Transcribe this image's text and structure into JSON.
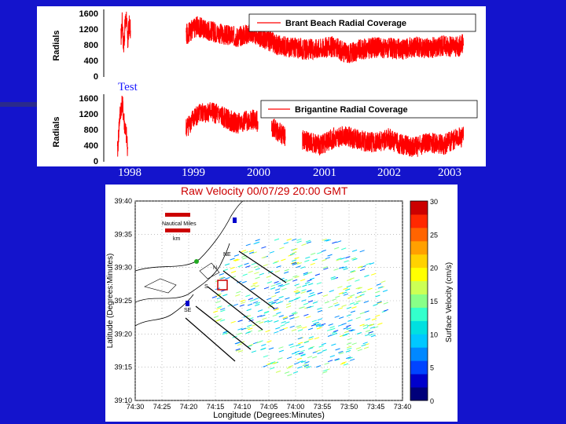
{
  "annotation": "Test",
  "year_labels": [
    "1998",
    "1999",
    "2000",
    "2001",
    "2002",
    "2003"
  ],
  "colors": {
    "background": "#1414cc",
    "series": "#ff0000",
    "title_red": "#cc0000"
  },
  "chart_data": [
    {
      "type": "line",
      "title": "Brant Beach Radial Coverage",
      "ylabel": "Radials",
      "ylim": [
        0,
        1600
      ],
      "yticks": [
        "1600",
        "1200",
        "800",
        "400",
        "0"
      ],
      "x_labels": [
        "1998",
        "1999",
        "2000",
        "2001",
        "2002",
        "2003"
      ],
      "legend": "Brant Beach Radial Coverage",
      "series": [
        {
          "name": "Brant Beach Radial Coverage",
          "segments": [
            {
              "x": [
                1998.1,
                1998.12,
                1998.14,
                1998.16,
                1998.18,
                1998.2,
                1998.22,
                1998.24
              ],
              "y": [
                900,
                1350,
                700,
                1200,
                1450,
                800,
                1250,
                1100
              ]
            },
            {
              "x": [
                1999.05,
                1999.2,
                1999.4,
                1999.6,
                1999.8,
                2000.0,
                2000.2,
                2000.4,
                2000.6,
                2000.8,
                2001.0,
                2001.2,
                2001.4,
                2001.6,
                2001.8,
                2002.0,
                2002.2,
                2002.4,
                2002.6,
                2002.8,
                2003.0,
                2003.1
              ],
              "y": [
                1000,
                1200,
                1100,
                1000,
                950,
                1050,
                900,
                750,
                700,
                650,
                680,
                720,
                550,
                650,
                700,
                680,
                650,
                720,
                680,
                750,
                700,
                780
              ]
            }
          ]
        }
      ]
    },
    {
      "type": "line",
      "title": "Brigantine Radial Coverage",
      "ylabel": "Radials",
      "ylim": [
        0,
        1600
      ],
      "yticks": [
        "1600",
        "1200",
        "800",
        "400",
        "0"
      ],
      "x_labels": [
        "1998",
        "1999",
        "2000",
        "2001",
        "2002",
        "2003"
      ],
      "legend": "Brigantine Radial Coverage",
      "series": [
        {
          "name": "Brigantine Radial Coverage",
          "segments": [
            {
              "x": [
                1998.05,
                1998.08,
                1998.1,
                1998.12,
                1998.15,
                1998.18,
                1998.2
              ],
              "y": [
                200,
                1000,
                1250,
                1400,
                900,
                600,
                300
              ]
            },
            {
              "x": [
                1999.05,
                1999.2,
                1999.4,
                1999.6,
                1999.8,
                2000.0,
                2000.1
              ],
              "y": [
                800,
                1100,
                1200,
                1050,
                900,
                1000,
                950
              ]
            },
            {
              "x": [
                2000.3,
                2000.4,
                2000.5
              ],
              "y": [
                850,
                700,
                600
              ]
            },
            {
              "x": [
                2000.75,
                2001.0,
                2001.2,
                2001.4,
                2001.6,
                2001.8,
                2002.0,
                2002.2,
                2002.4,
                2002.6,
                2002.8,
                2003.0,
                2003.1
              ],
              "y": [
                500,
                400,
                550,
                600,
                500,
                450,
                550,
                400,
                350,
                450,
                400,
                550,
                600
              ]
            }
          ]
        }
      ]
    },
    {
      "type": "heatmap",
      "title": "Raw Velocity 00/07/29 20:00 GMT",
      "xlabel": "Longitude (Degrees:Minutes)",
      "ylabel": "Latitude (Degrees:Minutes)",
      "x_ticks": [
        "74:30",
        "74:25",
        "74:20",
        "74:15",
        "74:10",
        "74:05",
        "74:00",
        "73:55",
        "73:50",
        "73:45",
        "73:40"
      ],
      "y_ticks": [
        "39:40",
        "39:35",
        "39:30",
        "39:25",
        "39:20",
        "39:15",
        "39:10"
      ],
      "colorbar_label": "Surface Velocity (cm/s)",
      "colorbar_ticks": [
        "30",
        "25",
        "20",
        "15",
        "10",
        "5",
        "0"
      ],
      "colorbar_range": [
        0,
        30
      ],
      "map_labels": [
        "Nautical Miles",
        "km"
      ],
      "site_labels": [
        "NE",
        "N",
        "S",
        "SE"
      ]
    }
  ]
}
